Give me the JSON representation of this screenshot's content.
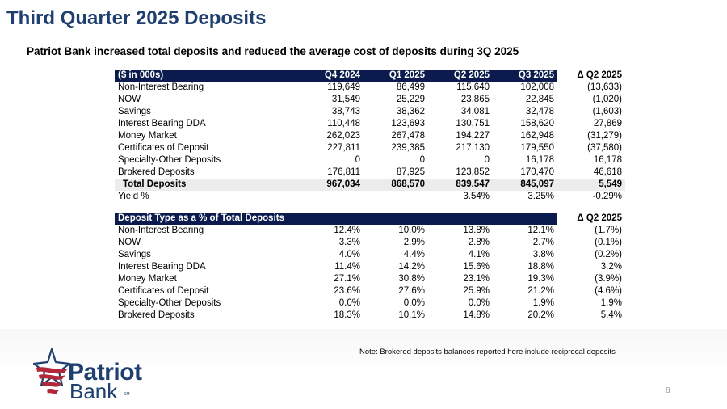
{
  "header": {
    "title": "Third Quarter 2025 Deposits",
    "subtitle": "Patriot Bank increased total deposits and reduced the average cost of deposits during 3Q 2025"
  },
  "table1": {
    "columns": [
      "($ in 000s)",
      "Q4 2024",
      "Q1 2025",
      "Q2 2025",
      "Q3 2025",
      "Δ Q2 2025"
    ],
    "rows": [
      [
        "Non-Interest Bearing",
        "119,649",
        "86,499",
        "115,640",
        "102,008",
        "(13,633)"
      ],
      [
        "NOW",
        "31,549",
        "25,229",
        "23,865",
        "22,845",
        "(1,020)"
      ],
      [
        "Savings",
        "38,743",
        "38,362",
        "34,081",
        "32,478",
        "(1,603)"
      ],
      [
        "Interest Bearing DDA",
        "110,448",
        "123,693",
        "130,751",
        "158,620",
        "27,869"
      ],
      [
        "Money Market",
        "262,023",
        "267,478",
        "194,227",
        "162,948",
        "(31,279)"
      ],
      [
        "Certificates of Deposit",
        "227,811",
        "239,385",
        "217,130",
        "179,550",
        "(37,580)"
      ],
      [
        "Specialty-Other Deposits",
        "0",
        "0",
        "0",
        "16,178",
        "16,178"
      ],
      [
        "Brokered Deposits",
        "176,811",
        "87,925",
        "123,852",
        "170,470",
        "46,618"
      ]
    ],
    "total": [
      "Total Deposits",
      "967,034",
      "868,570",
      "839,547",
      "845,097",
      "5,549"
    ],
    "yield": [
      "Yield  %",
      "",
      "",
      "3.54%",
      "3.25%",
      "-0.29%"
    ]
  },
  "table2": {
    "header": "Deposit Type as a % of Total Deposits",
    "delta_header": "Δ Q2 2025",
    "rows": [
      [
        "Non-Interest Bearing",
        "12.4%",
        "10.0%",
        "13.8%",
        "12.1%",
        "(1.7%)"
      ],
      [
        "NOW",
        "3.3%",
        "2.9%",
        "2.8%",
        "2.7%",
        "(0.1%)"
      ],
      [
        "Savings",
        "4.0%",
        "4.4%",
        "4.1%",
        "3.8%",
        "(0.2%)"
      ],
      [
        "Interest Bearing DDA",
        "11.4%",
        "14.2%",
        "15.6%",
        "18.8%",
        "3.2%"
      ],
      [
        "Money Market",
        "27.1%",
        "30.8%",
        "23.1%",
        "19.3%",
        "(3.9%)"
      ],
      [
        "Certificates of Deposit",
        "23.6%",
        "27.6%",
        "25.9%",
        "21.2%",
        "(4.6%)"
      ],
      [
        "Specialty-Other Deposits",
        "0.0%",
        "0.0%",
        "0.0%",
        "1.9%",
        "1.9%"
      ],
      [
        "Brokered Deposits",
        "18.3%",
        "10.1%",
        "14.8%",
        "20.2%",
        "5.4%"
      ]
    ]
  },
  "footer": {
    "note": "Note: Brokered deposits balances reported here include reciprocal deposits",
    "page_number": "8"
  },
  "logo": {
    "name_line1": "Patriot",
    "name_line2": "Bank",
    "mark": "SM",
    "icon": "patriot-star-flag-icon"
  },
  "colors": {
    "title_blue": "#1f3f6e",
    "header_navy": "#0b1b4d",
    "total_row_gray": "#ececec",
    "logo_red": "#b3273a"
  }
}
